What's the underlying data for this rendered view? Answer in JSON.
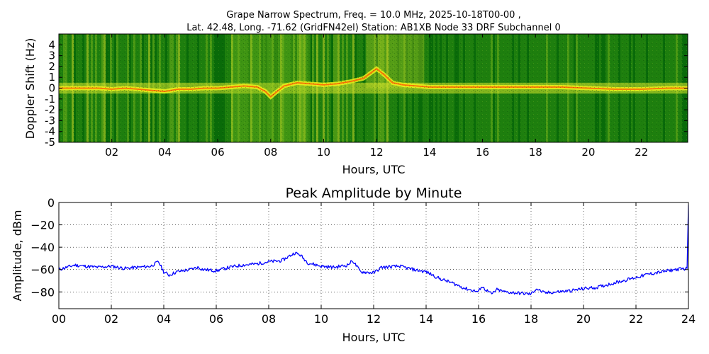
{
  "figure": {
    "title_line1": "Grape Narrow Spectrum, Freq. = 10.0 MHz, 2025-10-18T00-00 ,",
    "title_line2": "Lat.  42.48, Long. -71.62 (GridFN42el) Station: AB1XB Node 33 DRF Subchannel 0"
  },
  "chart_data": [
    {
      "type": "heatmap",
      "xlabel": "Hours, UTC",
      "ylabel": "Doppler Shift (Hz)",
      "xlim": [
        0,
        23.75
      ],
      "ylim": [
        -5,
        5
      ],
      "xticks": [
        2,
        4,
        6,
        8,
        10,
        12,
        14,
        16,
        18,
        20,
        22
      ],
      "xticklabels": [
        "02",
        "04",
        "06",
        "08",
        "10",
        "12",
        "14",
        "16",
        "18",
        "20",
        "22"
      ],
      "yticks": [
        4,
        3,
        2,
        1,
        0,
        -1,
        -2,
        -3,
        -4,
        -5
      ],
      "yticklabels": [
        "4",
        "3",
        "2",
        "1",
        "0",
        "-1",
        "-2",
        "-3",
        "-4",
        "-5"
      ],
      "colormap": [
        "#0a6b0a",
        "#2f8f12",
        "#7fbf1e",
        "#d8e62a",
        "#f7f21c",
        "#ff5a00"
      ],
      "trace": {
        "x": [
          0,
          0.5,
          1,
          1.5,
          2,
          2.5,
          3,
          3.5,
          4,
          4.5,
          5,
          5.5,
          6,
          6.5,
          7,
          7.5,
          7.8,
          8.0,
          8.2,
          8.5,
          9.0,
          9.5,
          10,
          10.5,
          11,
          11.5,
          12,
          12.3,
          12.6,
          13,
          13.5,
          14,
          15,
          16,
          17,
          18,
          19,
          20,
          21,
          22,
          23,
          23.75
        ],
        "y": [
          0.0,
          0.0,
          0.0,
          0.0,
          -0.1,
          0.0,
          -0.1,
          -0.2,
          -0.3,
          -0.1,
          -0.1,
          0.0,
          0.0,
          0.1,
          0.2,
          0.1,
          -0.3,
          -0.8,
          -0.4,
          0.2,
          0.5,
          0.4,
          0.3,
          0.4,
          0.6,
          0.9,
          1.8,
          1.2,
          0.5,
          0.3,
          0.2,
          0.1,
          0.1,
          0.1,
          0.1,
          0.1,
          0.1,
          0.0,
          -0.1,
          -0.1,
          0.0,
          0.0
        ]
      }
    },
    {
      "type": "line",
      "title": "Peak Amplitude by Minute",
      "xlabel": "Hours, UTC",
      "ylabel": "Amplitude, dBm",
      "xlim": [
        0,
        24
      ],
      "ylim": [
        -95,
        0
      ],
      "grid": true,
      "xticks": [
        0,
        2,
        4,
        6,
        8,
        10,
        12,
        14,
        16,
        18,
        20,
        22,
        24
      ],
      "xticklabels": [
        "00",
        "02",
        "04",
        "06",
        "08",
        "10",
        "12",
        "14",
        "16",
        "18",
        "20",
        "22",
        "24"
      ],
      "yticks": [
        0,
        -20,
        -40,
        -60,
        -80
      ],
      "yticklabels": [
        "0",
        "−20",
        "−40",
        "−60",
        "−80"
      ],
      "color": "#0000ff",
      "series": [
        {
          "x": [
            0,
            0.3,
            0.6,
            1.0,
            1.5,
            2.0,
            2.5,
            3.0,
            3.5,
            3.8,
            4.0,
            4.2,
            4.5,
            5.0,
            5.3,
            5.5,
            6.0,
            6.5,
            7.0,
            7.5,
            8.0,
            8.5,
            9.0,
            9.2,
            9.5,
            10.0,
            10.5,
            11.0,
            11.2,
            11.5,
            12.0,
            12.3,
            13.0,
            13.5,
            14.0,
            14.5,
            15.0,
            15.5,
            16.0,
            16.1,
            16.5,
            16.7,
            17.0,
            17.5,
            18.0,
            18.2,
            18.5,
            19.0,
            19.5,
            20.0,
            20.5,
            21.0,
            21.5,
            22.0,
            22.5,
            23.0,
            23.5,
            23.95,
            24.0
          ],
          "y": [
            -60,
            -58,
            -56,
            -57,
            -58,
            -57,
            -59,
            -58,
            -57,
            -53,
            -62,
            -65,
            -62,
            -60,
            -58,
            -60,
            -61,
            -58,
            -56,
            -55,
            -53,
            -52,
            -45,
            -47,
            -54,
            -57,
            -58,
            -56,
            -52,
            -62,
            -63,
            -58,
            -57,
            -60,
            -62,
            -68,
            -72,
            -77,
            -80,
            -75,
            -82,
            -78,
            -80,
            -81,
            -82,
            -77,
            -81,
            -80,
            -79,
            -77,
            -76,
            -73,
            -70,
            -67,
            -64,
            -62,
            -60,
            -59,
            -2
          ]
        }
      ]
    }
  ]
}
